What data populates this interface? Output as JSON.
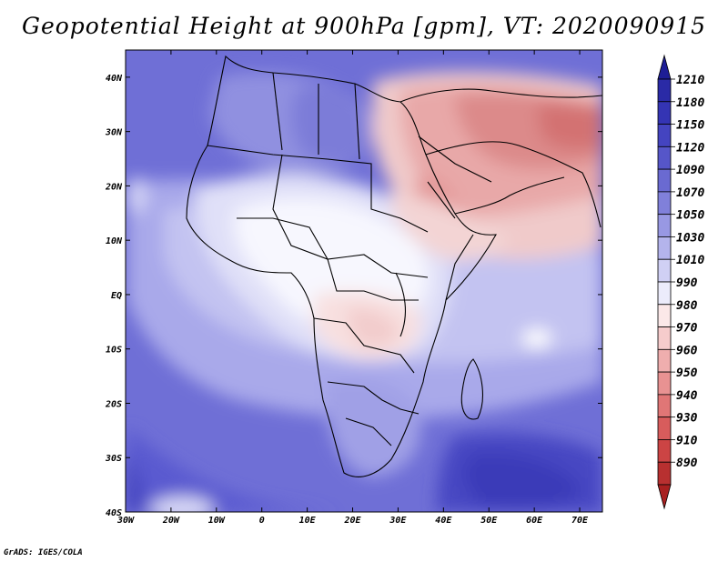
{
  "title": "Geopotential Height at 900hPa [gpm], VT: 2020090915",
  "footer": "GrADS: IGES/COLA",
  "map": {
    "lon_range": [
      -30,
      75
    ],
    "lat_range": [
      -40,
      45
    ],
    "x_ticks": [
      "30W",
      "20W",
      "10W",
      "0",
      "10E",
      "20E",
      "30E",
      "40E",
      "50E",
      "60E",
      "70E"
    ],
    "y_ticks": [
      "40N",
      "30N",
      "20N",
      "10N",
      "EQ",
      "10S",
      "20S",
      "30S",
      "40S"
    ]
  },
  "colorbar": {
    "labels": [
      "1210",
      "1180",
      "1150",
      "1120",
      "1090",
      "1070",
      "1050",
      "1030",
      "1010",
      "990",
      "980",
      "970",
      "960",
      "950",
      "940",
      "930",
      "910",
      "890"
    ],
    "colors": [
      "#2a2aa6",
      "#3434b4",
      "#4444c0",
      "#5656c9",
      "#6a6ad1",
      "#8080da",
      "#9898e3",
      "#b4b4ec",
      "#d0d0f4",
      "#ececfb",
      "#fbe8e8",
      "#f6cccc",
      "#efaeae",
      "#e89292",
      "#e07676",
      "#d85c5c",
      "#cc4444",
      "#b83030"
    ],
    "top_arrow_color": "#1e1e96",
    "bottom_arrow_color": "#a82020"
  }
}
